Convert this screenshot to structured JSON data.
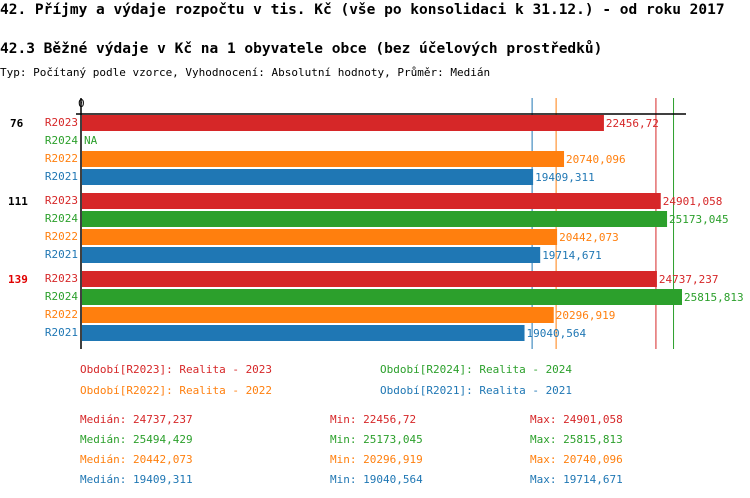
{
  "header": {
    "title": "42. Příjmy a výdaje rozpočtu v tis. Kč (vše po konsolidaci k 31.12.) - od roku 2017",
    "subtitle": "42.3 Běžné výdaje v Kč na 1 obyvatele obce (bez účelových prostředků)",
    "meta": "Typ: Počítaný podle vzorce, Vyhodnocení: Absolutní hodnoty, Průměr: Medián"
  },
  "chart_data": {
    "type": "bar",
    "orientation": "horizontal",
    "x_tick_labels": [
      "0"
    ],
    "xlim": [
      0,
      25815.813
    ],
    "groups": [
      {
        "label": "76",
        "highlight": false,
        "rows": [
          {
            "series": "R2023",
            "value": 22456.72,
            "label": "22456,72"
          },
          {
            "series": "R2024",
            "value": null,
            "label": "NA"
          },
          {
            "series": "R2022",
            "value": 20740.096,
            "label": "20740,096"
          },
          {
            "series": "R2021",
            "value": 19409.311,
            "label": "19409,311"
          }
        ]
      },
      {
        "label": "111",
        "highlight": false,
        "rows": [
          {
            "series": "R2023",
            "value": 24901.058,
            "label": "24901,058"
          },
          {
            "series": "R2024",
            "value": 25173.045,
            "label": "25173,045"
          },
          {
            "series": "R2022",
            "value": 20442.073,
            "label": "20442,073"
          },
          {
            "series": "R2021",
            "value": 19714.671,
            "label": "19714,671"
          }
        ]
      },
      {
        "label": "139",
        "highlight": true,
        "rows": [
          {
            "series": "R2023",
            "value": 24737.237,
            "label": "24737,237"
          },
          {
            "series": "R2024",
            "value": 25815.813,
            "label": "25815,813"
          },
          {
            "series": "R2022",
            "value": 20296.919,
            "label": "20296,919"
          },
          {
            "series": "R2021",
            "value": 19040.564,
            "label": "19040,564"
          }
        ]
      }
    ],
    "series": [
      {
        "name": "R2023",
        "color": "#d62728",
        "legend": "Období[R2023]: Realita - 2023",
        "median": 24737.237,
        "median_label": "Medián: 24737,237",
        "min_label": "Min: 22456,72",
        "max_label": "Max: 24901,058"
      },
      {
        "name": "R2024",
        "color": "#2ca02c",
        "legend": "Období[R2024]: Realita - 2024",
        "median": 25494.429,
        "median_label": "Medián: 25494,429",
        "min_label": "Min: 25173,045",
        "max_label": "Max: 25815,813"
      },
      {
        "name": "R2022",
        "color": "#ff7f0e",
        "legend": "Období[R2022]: Realita - 2022",
        "median": 20442.073,
        "median_label": "Medián: 20442,073",
        "min_label": "Min: 20296,919",
        "max_label": "Max: 20740,096"
      },
      {
        "name": "R2021",
        "color": "#1f77b4",
        "legend": "Období[R2021]: Realita - 2021",
        "median": 19409.311,
        "median_label": "Medián: 19409,311",
        "min_label": "Min: 19040,564",
        "max_label": "Max: 19714,671"
      }
    ],
    "highlight_color": "#e00000"
  }
}
